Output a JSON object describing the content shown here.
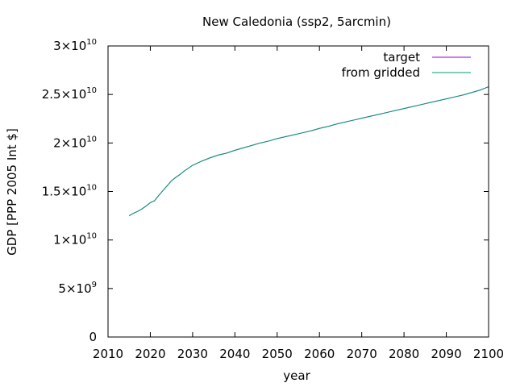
{
  "chart_data": {
    "type": "line",
    "title": "New Caledonia (ssp2, 5arcmin)",
    "xlabel": "year",
    "ylabel": "GDP [PPP 2005 Int $]",
    "xlim": [
      2010,
      2100
    ],
    "ylim": [
      0,
      30000000000
    ],
    "x_ticks": [
      2010,
      2020,
      2030,
      2040,
      2050,
      2060,
      2070,
      2080,
      2090,
      2100
    ],
    "x_tick_labels": [
      "2010",
      "2020",
      "2030",
      "2040",
      "2050",
      "2060",
      "2070",
      "2080",
      "2090",
      "2100"
    ],
    "y_ticks": [
      0,
      5000000000,
      10000000000,
      15000000000,
      20000000000,
      25000000000,
      30000000000
    ],
    "y_tick_labels": [
      {
        "mantissa": "0",
        "exp": ""
      },
      {
        "mantissa": "5×10",
        "exp": "9"
      },
      {
        "mantissa": "1×10",
        "exp": "10"
      },
      {
        "mantissa": "1.5×10",
        "exp": "10"
      },
      {
        "mantissa": "2×10",
        "exp": "10"
      },
      {
        "mantissa": "2.5×10",
        "exp": "10"
      },
      {
        "mantissa": "3×10",
        "exp": "10"
      }
    ],
    "legend_position": "top-right",
    "grid": false,
    "x": [
      2015,
      2016,
      2017,
      2018,
      2019,
      2020,
      2021,
      2022,
      2023,
      2024,
      2025,
      2026,
      2027,
      2028,
      2029,
      2030,
      2032,
      2034,
      2036,
      2038,
      2040,
      2042,
      2044,
      2046,
      2048,
      2050,
      2052,
      2054,
      2056,
      2058,
      2060,
      2062,
      2064,
      2066,
      2068,
      2070,
      2072,
      2074,
      2076,
      2078,
      2080,
      2082,
      2084,
      2086,
      2088,
      2090,
      2092,
      2094,
      2096,
      2098,
      2100
    ],
    "series": [
      {
        "name": "target",
        "color": "#9400d3",
        "values": [
          12500000000.0,
          12750000000.0,
          12950000000.0,
          13200000000.0,
          13500000000.0,
          13850000000.0,
          14050000000.0,
          14600000000.0,
          15100000000.0,
          15600000000.0,
          16100000000.0,
          16450000000.0,
          16750000000.0,
          17100000000.0,
          17400000000.0,
          17700000000.0,
          18100000000.0,
          18450000000.0,
          18750000000.0,
          18950000000.0,
          19250000000.0,
          19500000000.0,
          19750000000.0,
          20000000000.0,
          20200000000.0,
          20450000000.0,
          20650000000.0,
          20850000000.0,
          21050000000.0,
          21250000000.0,
          21500000000.0,
          21700000000.0,
          21950000000.0,
          22150000000.0,
          22350000000.0,
          22550000000.0,
          22750000000.0,
          22950000000.0,
          23150000000.0,
          23350000000.0,
          23550000000.0,
          23750000000.0,
          23950000000.0,
          24150000000.0,
          24350000000.0,
          24550000000.0,
          24750000000.0,
          24950000000.0,
          25200000000.0,
          25450000000.0,
          25800000000.0
        ]
      },
      {
        "name": "from gridded",
        "color": "#009e73",
        "values": [
          12500000000.0,
          12750000000.0,
          12950000000.0,
          13200000000.0,
          13500000000.0,
          13850000000.0,
          14050000000.0,
          14600000000.0,
          15100000000.0,
          15600000000.0,
          16100000000.0,
          16450000000.0,
          16750000000.0,
          17100000000.0,
          17400000000.0,
          17700000000.0,
          18100000000.0,
          18450000000.0,
          18750000000.0,
          18950000000.0,
          19250000000.0,
          19500000000.0,
          19750000000.0,
          20000000000.0,
          20200000000.0,
          20450000000.0,
          20650000000.0,
          20850000000.0,
          21050000000.0,
          21250000000.0,
          21500000000.0,
          21700000000.0,
          21950000000.0,
          22150000000.0,
          22350000000.0,
          22550000000.0,
          22750000000.0,
          22950000000.0,
          23150000000.0,
          23350000000.0,
          23550000000.0,
          23750000000.0,
          23950000000.0,
          24150000000.0,
          24350000000.0,
          24550000000.0,
          24750000000.0,
          24950000000.0,
          25200000000.0,
          25450000000.0,
          25800000000.0
        ]
      }
    ]
  }
}
